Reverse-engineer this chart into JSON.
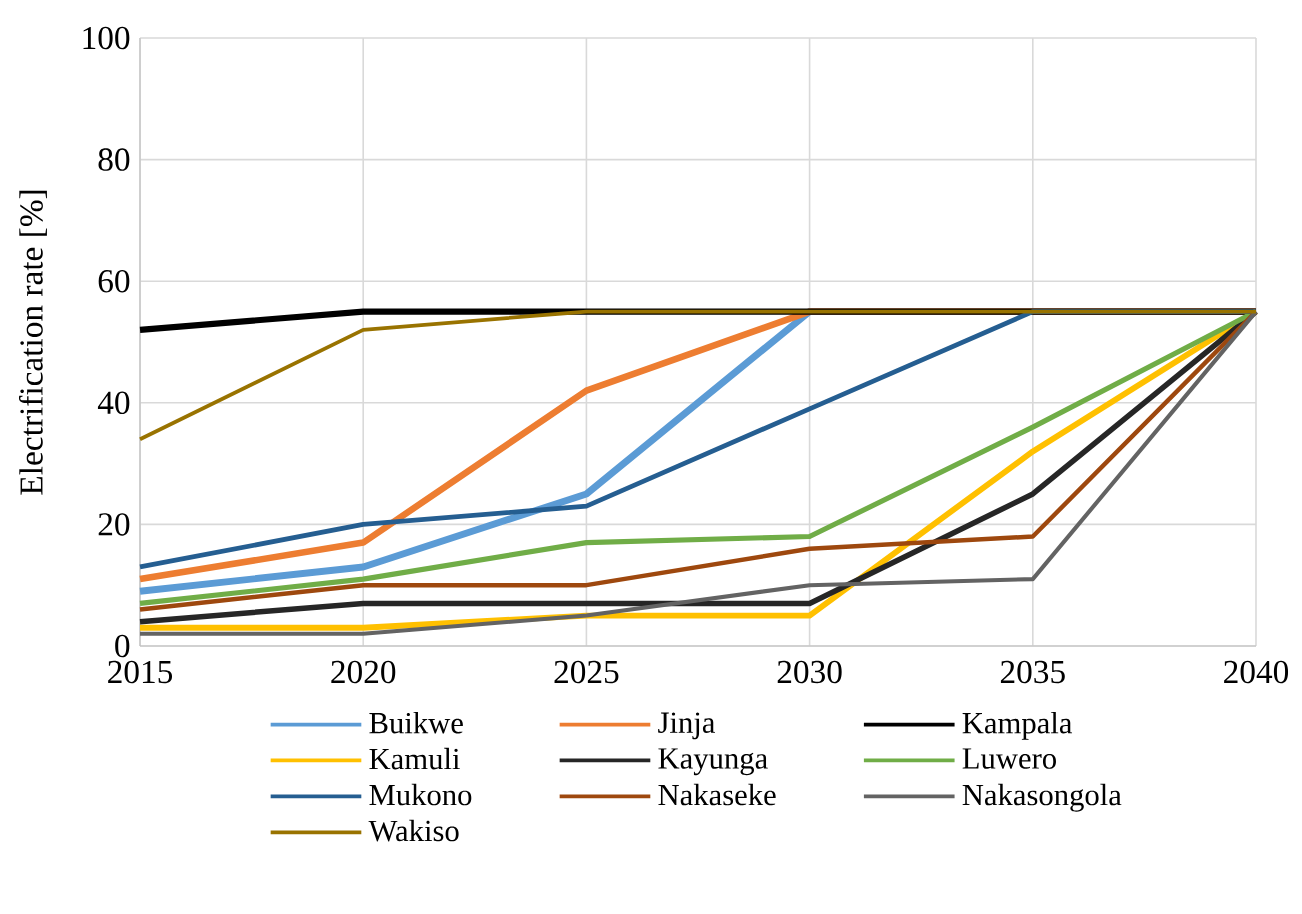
{
  "chart_data": {
    "type": "line",
    "ylabel": "Electrification rate [%]",
    "x": [
      2015,
      2020,
      2025,
      2030,
      2035,
      2040
    ],
    "xlim": [
      2015,
      2040
    ],
    "xticks": [
      2015,
      2020,
      2025,
      2030,
      2035,
      2040
    ],
    "ylim": [
      0,
      100
    ],
    "yticks": [
      0,
      20,
      40,
      60,
      80,
      100
    ],
    "grid": true,
    "legend": "bottom",
    "marker": "none",
    "line_style": "solid",
    "series": [
      {
        "name": "Buikwe",
        "color": "#5b9bd5",
        "values": [
          9,
          13,
          25,
          55,
          55,
          55
        ]
      },
      {
        "name": "Jinja",
        "color": "#ed7d31",
        "values": [
          11,
          17,
          42,
          55,
          55,
          55
        ]
      },
      {
        "name": "Kampala",
        "color": "#000000",
        "values": [
          52,
          55,
          55,
          55,
          55,
          55
        ]
      },
      {
        "name": "Kamuli",
        "color": "#ffc000",
        "values": [
          3,
          3,
          5,
          5,
          32,
          55
        ]
      },
      {
        "name": "Kayunga",
        "color": "#262626",
        "values": [
          4,
          7,
          7,
          7,
          25,
          55
        ]
      },
      {
        "name": "Luwero",
        "color": "#70ad47",
        "values": [
          7,
          11,
          17,
          18,
          36,
          55
        ]
      },
      {
        "name": "Mukono",
        "color": "#255e91",
        "values": [
          13,
          20,
          23,
          39,
          55,
          55
        ]
      },
      {
        "name": "Nakaseke",
        "color": "#9e480e",
        "values": [
          6,
          10,
          10,
          16,
          18,
          55
        ]
      },
      {
        "name": "Nakasongola",
        "color": "#636363",
        "values": [
          2,
          2,
          5,
          10,
          11,
          55
        ]
      },
      {
        "name": "Wakiso",
        "color": "#997300",
        "values": [
          34,
          52,
          55,
          55,
          55,
          55
        ]
      }
    ]
  }
}
